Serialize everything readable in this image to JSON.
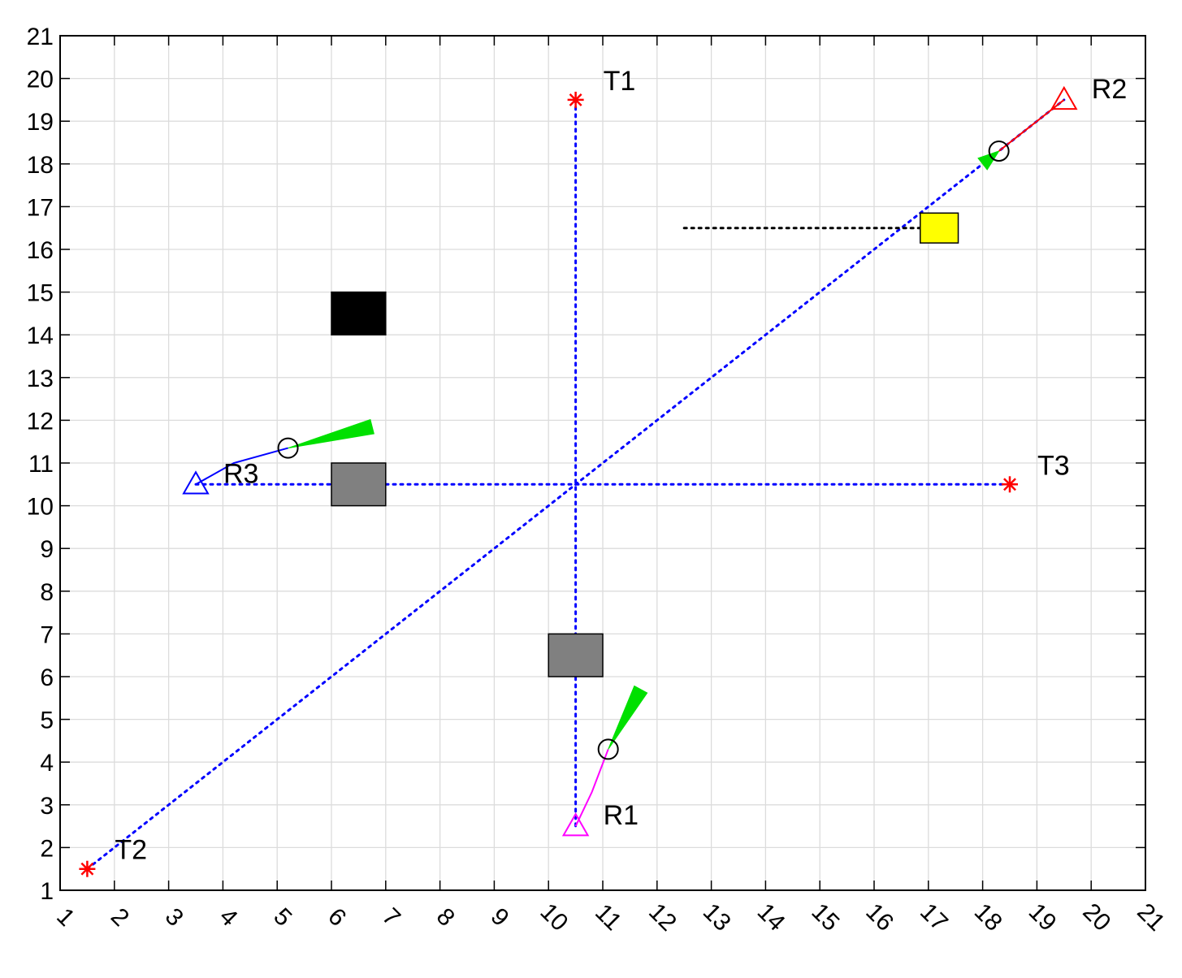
{
  "chart_data": {
    "type": "scatter",
    "xlim": [
      1,
      21
    ],
    "ylim": [
      1,
      21
    ],
    "xticks": [
      1,
      2,
      3,
      4,
      5,
      6,
      7,
      8,
      9,
      10,
      11,
      12,
      13,
      14,
      15,
      16,
      17,
      18,
      19,
      20,
      21
    ],
    "yticks": [
      1,
      2,
      3,
      4,
      5,
      6,
      7,
      8,
      9,
      10,
      11,
      12,
      13,
      14,
      15,
      16,
      17,
      18,
      19,
      20,
      21
    ],
    "grid": true,
    "targets": [
      {
        "label": "T1",
        "x": 10.5,
        "y": 19.5,
        "color": "#ff0000"
      },
      {
        "label": "T2",
        "x": 1.5,
        "y": 1.5,
        "color": "#ff0000"
      },
      {
        "label": "T3",
        "x": 18.5,
        "y": 10.5,
        "color": "#ff0000"
      }
    ],
    "robots": [
      {
        "label": "R1",
        "x": 10.5,
        "y": 2.5,
        "color": "#ff00ff",
        "path": [
          [
            10.5,
            2.5
          ],
          [
            10.8,
            3.3
          ],
          [
            11.1,
            4.3
          ]
        ],
        "current": [
          11.1,
          4.3
        ],
        "cone_tip": [
          11.7,
          5.7
        ]
      },
      {
        "label": "R2",
        "x": 19.5,
        "y": 19.5,
        "color": "#ff0000",
        "path": [
          [
            19.5,
            19.5
          ],
          [
            18.9,
            18.9
          ],
          [
            18.3,
            18.3
          ]
        ],
        "current": [
          18.3,
          18.3
        ],
        "cone_tip": [
          18.0,
          18.0
        ]
      },
      {
        "label": "R3",
        "x": 3.5,
        "y": 10.5,
        "color": "#0000ff",
        "path": [
          [
            3.5,
            10.5
          ],
          [
            4.2,
            11.0
          ],
          [
            5.2,
            11.35
          ]
        ],
        "current": [
          5.2,
          11.35
        ],
        "cone_tip": [
          6.75,
          11.85
        ]
      }
    ],
    "routes": [
      {
        "from": [
          10.5,
          19.5
        ],
        "to": [
          10.5,
          2.5
        ],
        "color": "#0000ff",
        "style": "dotted"
      },
      {
        "from": [
          1.5,
          1.5
        ],
        "to": [
          19.5,
          19.5
        ],
        "color": "#0000ff",
        "style": "dotted"
      },
      {
        "from": [
          3.5,
          10.5
        ],
        "to": [
          18.5,
          10.5
        ],
        "color": "#0000ff",
        "style": "dotted"
      },
      {
        "from": [
          12.5,
          16.5
        ],
        "to": [
          17.2,
          16.5
        ],
        "color": "#000000",
        "style": "dotted"
      }
    ],
    "obstacles": [
      {
        "x": 6,
        "y": 14,
        "w": 1,
        "h": 1,
        "color": "#000000"
      },
      {
        "x": 6,
        "y": 10,
        "w": 1,
        "h": 1,
        "color": "#808080"
      },
      {
        "x": 10,
        "y": 6,
        "w": 1,
        "h": 1,
        "color": "#808080"
      },
      {
        "x": 16.85,
        "y": 16.15,
        "w": 0.7,
        "h": 0.7,
        "color": "#ffff00"
      }
    ]
  }
}
